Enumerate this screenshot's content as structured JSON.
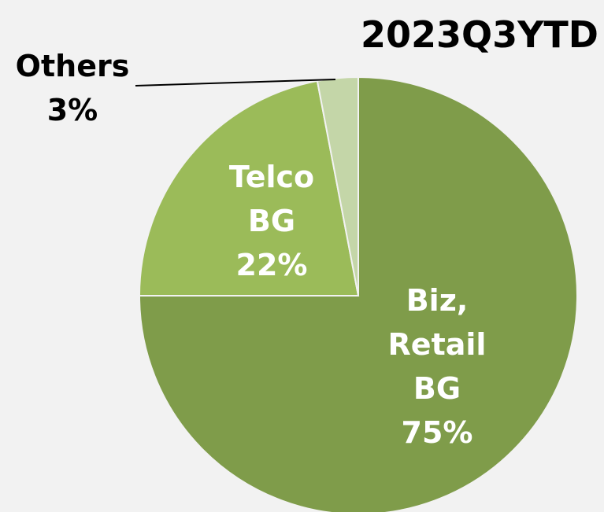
{
  "chart_data": {
    "type": "pie",
    "title": "2023Q3YTD",
    "categories": [
      "Biz, Retail BG",
      "Telco BG",
      "Others"
    ],
    "values": [
      75,
      22,
      3
    ],
    "value_labels": [
      "75%",
      "22%",
      "3%"
    ],
    "colors": [
      "#7f9c4a",
      "#9bbb59",
      "#c4d6a8"
    ],
    "start_angle": 0,
    "direction": "clockwise"
  }
}
